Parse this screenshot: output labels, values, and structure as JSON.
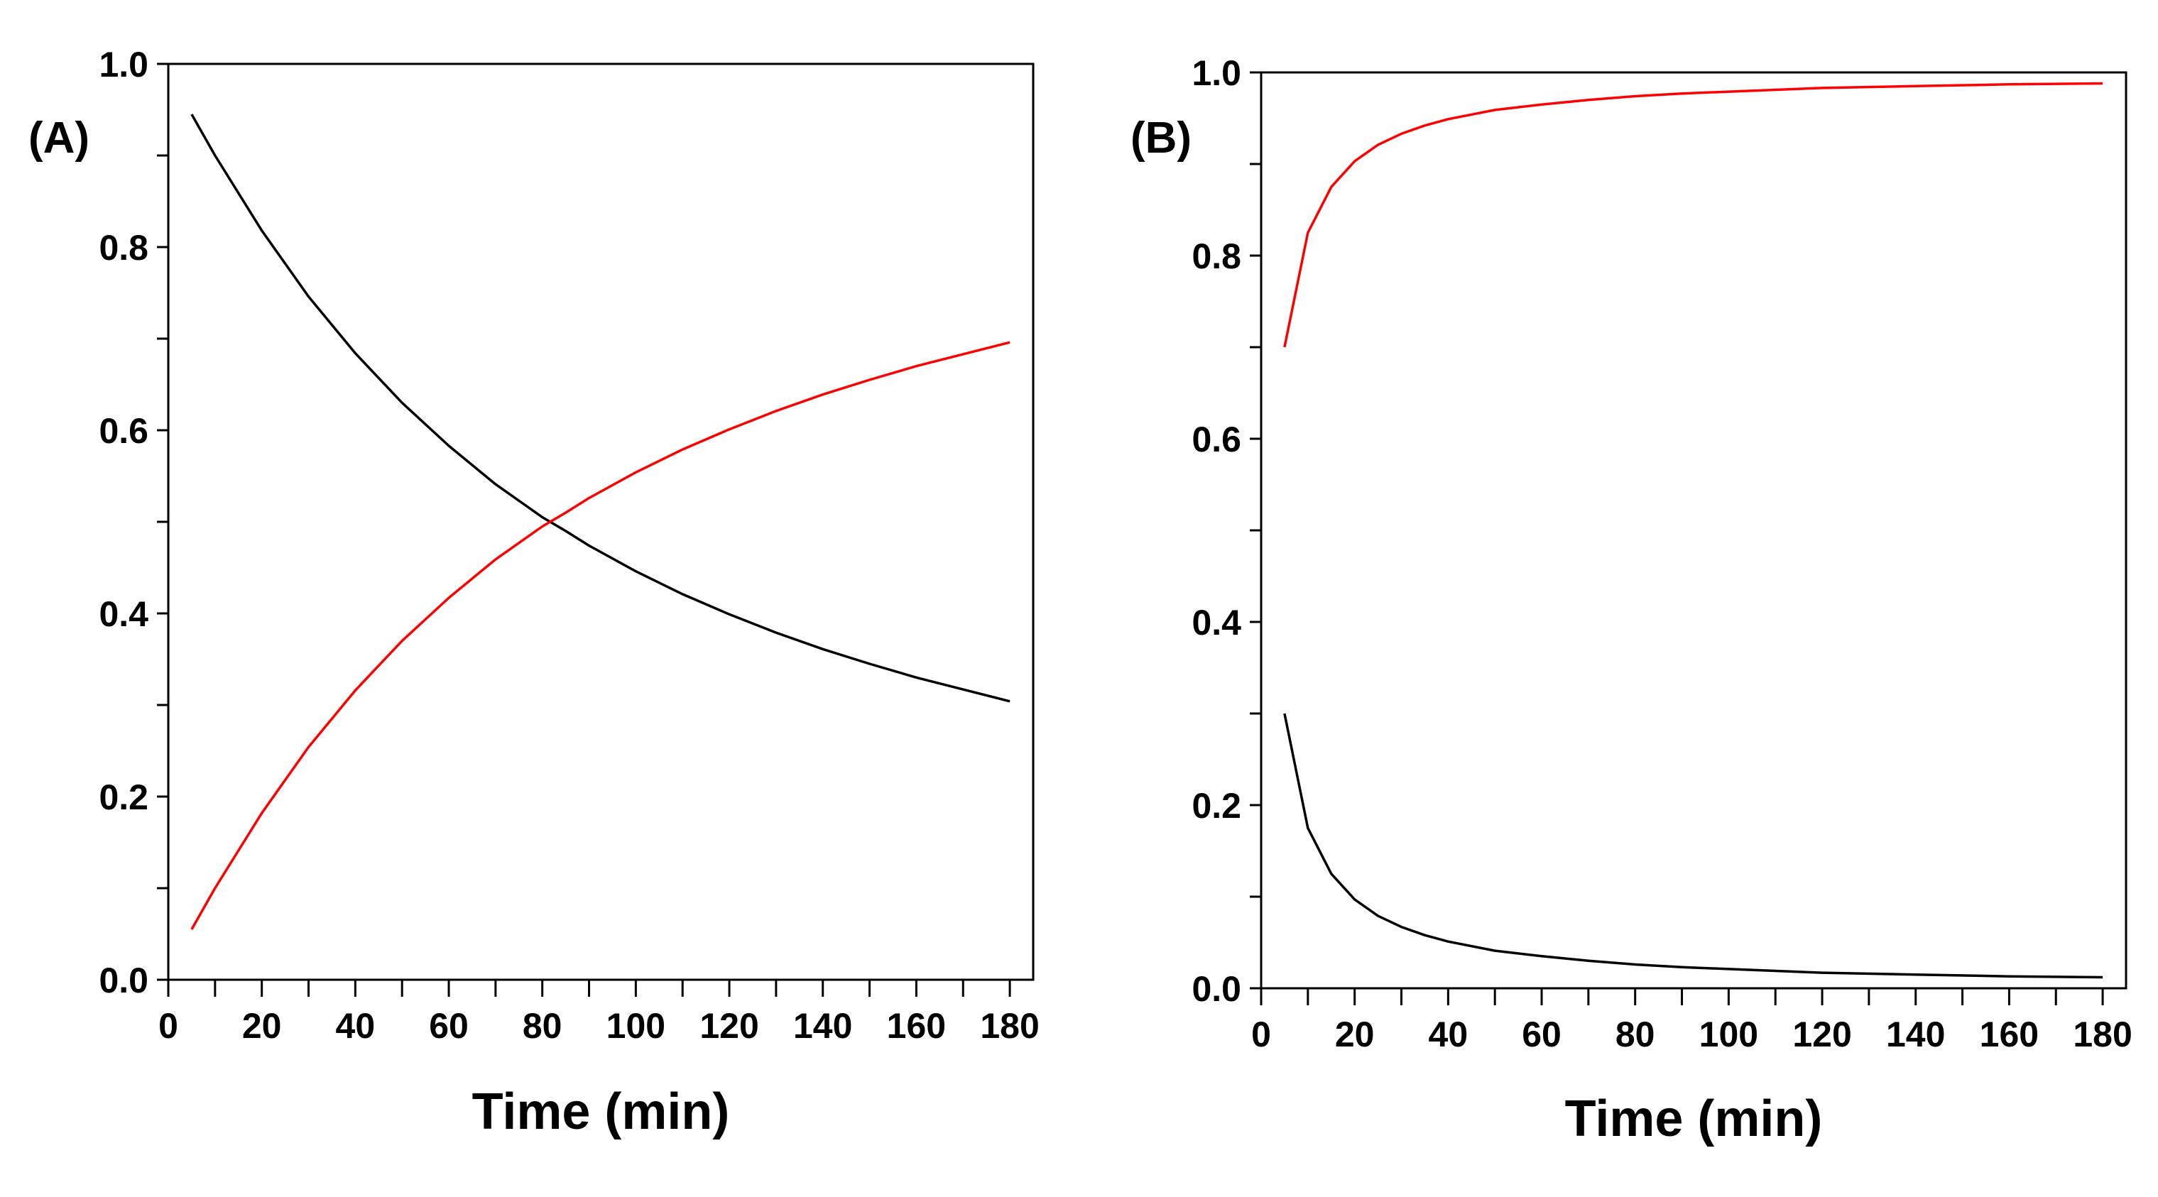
{
  "chart_data": [
    {
      "type": "line",
      "panel_label": "(A)",
      "xlabel": "Time (min)",
      "ylabel": "",
      "xlim": [
        0,
        185
      ],
      "ylim": [
        0,
        1.0
      ],
      "xticks": [
        0,
        20,
        40,
        60,
        80,
        100,
        120,
        140,
        160,
        180
      ],
      "xtick_labels": [
        "0",
        "20",
        "40",
        "60",
        "80",
        "100",
        "120",
        "140",
        "160",
        "180"
      ],
      "yticks": [
        0,
        0.2,
        0.4,
        0.6,
        0.8,
        1.0
      ],
      "ytick_labels": [
        "0.0",
        "0.2",
        "0.4",
        "0.6",
        "0.8",
        "1.0"
      ],
      "grid": false,
      "series": [
        {
          "name": "black",
          "color": "#000000",
          "x": [
            5,
            10,
            20,
            30,
            40,
            50,
            60,
            70,
            80,
            85,
            90,
            100,
            110,
            120,
            130,
            140,
            150,
            160,
            170,
            180
          ],
          "values": [
            0.945,
            0.9,
            0.818,
            0.746,
            0.684,
            0.63,
            0.583,
            0.541,
            0.505,
            0.49,
            0.474,
            0.446,
            0.421,
            0.399,
            0.379,
            0.361,
            0.345,
            0.33,
            0.317,
            0.304
          ]
        },
        {
          "name": "red",
          "color": "#ff0000",
          "x": [
            5,
            10,
            20,
            30,
            40,
            50,
            60,
            70,
            80,
            85,
            90,
            100,
            110,
            120,
            130,
            140,
            150,
            160,
            170,
            180
          ],
          "values": [
            0.055,
            0.1,
            0.182,
            0.254,
            0.316,
            0.37,
            0.417,
            0.459,
            0.495,
            0.51,
            0.526,
            0.554,
            0.579,
            0.601,
            0.621,
            0.639,
            0.655,
            0.67,
            0.683,
            0.696
          ]
        }
      ]
    },
    {
      "type": "line",
      "panel_label": "(B)",
      "xlabel": "Time (min)",
      "ylabel": "",
      "xlim": [
        0,
        185
      ],
      "ylim": [
        0,
        1.0
      ],
      "xticks": [
        0,
        20,
        40,
        60,
        80,
        100,
        120,
        140,
        160,
        180
      ],
      "xtick_labels": [
        "0",
        "20",
        "40",
        "60",
        "80",
        "100",
        "120",
        "140",
        "160",
        "180"
      ],
      "yticks": [
        0,
        0.2,
        0.4,
        0.6,
        0.8,
        1.0
      ],
      "ytick_labels": [
        "0.0",
        "0.2",
        "0.4",
        "0.6",
        "0.8",
        "1.0"
      ],
      "grid": false,
      "series": [
        {
          "name": "red",
          "color": "#ff0000",
          "x": [
            5,
            10,
            15,
            20,
            25,
            30,
            35,
            40,
            50,
            60,
            70,
            80,
            90,
            100,
            120,
            140,
            160,
            180
          ],
          "values": [
            0.7,
            0.825,
            0.875,
            0.903,
            0.921,
            0.933,
            0.942,
            0.949,
            0.959,
            0.965,
            0.97,
            0.974,
            0.977,
            0.979,
            0.983,
            0.985,
            0.987,
            0.988
          ]
        },
        {
          "name": "black",
          "color": "#000000",
          "x": [
            5,
            10,
            15,
            20,
            25,
            30,
            35,
            40,
            50,
            60,
            70,
            80,
            90,
            100,
            120,
            140,
            160,
            180
          ],
          "values": [
            0.3,
            0.175,
            0.125,
            0.097,
            0.079,
            0.067,
            0.058,
            0.051,
            0.041,
            0.035,
            0.03,
            0.026,
            0.023,
            0.021,
            0.017,
            0.015,
            0.013,
            0.012
          ]
        }
      ]
    }
  ]
}
